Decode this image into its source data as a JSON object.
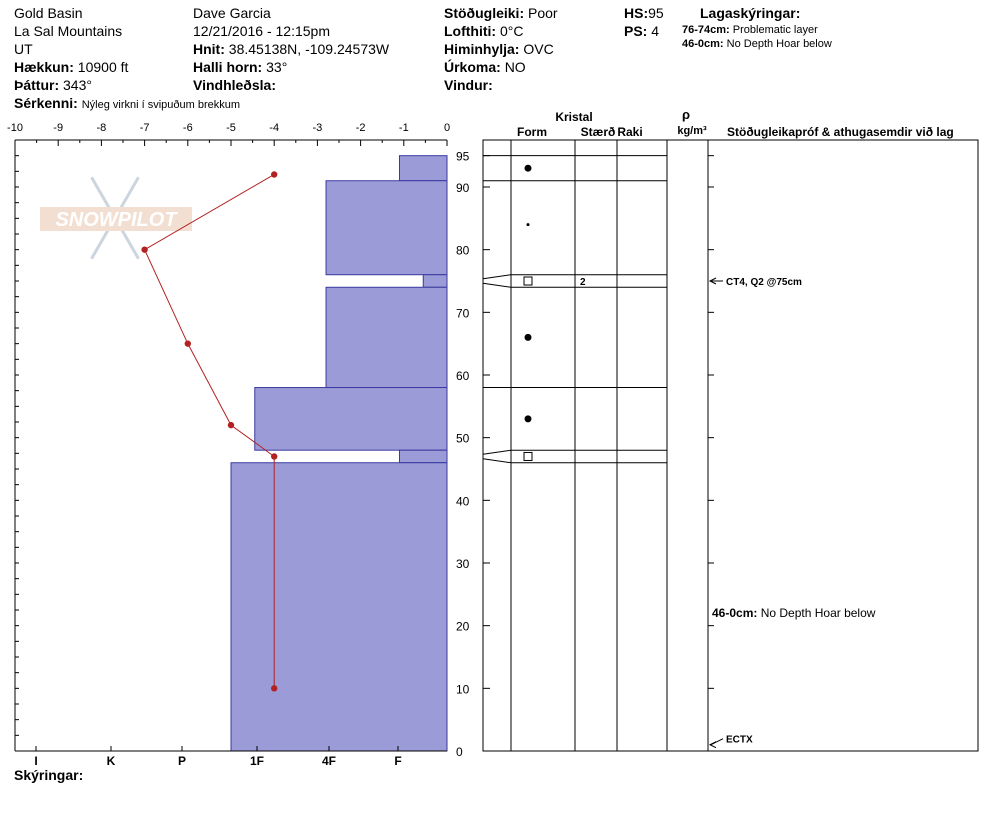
{
  "header": {
    "location": "Gold Basin",
    "range": "La Sal Mountains",
    "state": "UT",
    "elevation_label": "Hækkun:",
    "elevation_value": "10900 ft",
    "aspect_label": "Þáttur:",
    "aspect_value": "343°",
    "specifics_label": "Sérkenni:",
    "specifics_value": "Nýleg virkni í svipuðum brekkum",
    "observer": "Dave Garcia",
    "datetime": "12/21/2016 - 12:15pm",
    "coords_label": "Hnit:",
    "coords_value": "38.45138N, -109.24573W",
    "slope_label": "Halli horn:",
    "slope_value": "33°",
    "wind_loading_label": "Vindhleðsla:",
    "wind_loading_value": "",
    "stability_label": "Stöðugleiki:",
    "stability_value": "Poor",
    "air_temp_label": "Lofthiti:",
    "air_temp_value": "0°C",
    "sky_label": "Himinhylja:",
    "sky_value": "OVC",
    "precip_label": "Úrkoma:",
    "precip_value": "NO",
    "wind_label": "Vindur:",
    "wind_value": "",
    "hs_label": "HS:",
    "hs_value": "95",
    "ps_label": "PS:",
    "ps_value": "4",
    "layer_notes_title": "Lagaskýringar:",
    "layer_notes": [
      {
        "range": "76-74cm:",
        "text": "Problematic layer"
      },
      {
        "range": "46-0cm:",
        "text": "No Depth Hoar below"
      }
    ]
  },
  "footer": {
    "notes_label": "Skýringar:"
  },
  "watermark": "SNOWPILOT",
  "colors": {
    "hardness_fill": "#9b9bd7",
    "hardness_stroke": "#3a3aa0",
    "temp_line": "#b22222"
  },
  "table_headers": {
    "crystal": "Kristal",
    "form": "Form",
    "size": "Stærð",
    "wetness": "Raki",
    "rho": "ρ",
    "density_unit": "kg/m³",
    "tests": "Stöðugleikapróf & athugasemdir við lag"
  },
  "chart_data": {
    "type": "snow-profile",
    "temperature_axis": {
      "ticks": [
        "-10",
        "-9",
        "-8",
        "-7",
        "-6",
        "-5",
        "-4",
        "-3",
        "-2",
        "-1",
        "0"
      ],
      "range": [
        -10,
        0
      ]
    },
    "hardness_axis": {
      "ticks": [
        "I",
        "K",
        "P",
        "1F",
        "4F",
        "F"
      ]
    },
    "depth_axis": {
      "ticks": [
        "0",
        "10",
        "20",
        "30",
        "40",
        "50",
        "60",
        "70",
        "80",
        "90",
        "95"
      ],
      "range": [
        0,
        95
      ]
    },
    "hardness_layers": [
      {
        "top": 95,
        "bottom": 91,
        "temp_units": -1.1
      },
      {
        "top": 91,
        "bottom": 76,
        "temp_units": -2.8
      },
      {
        "top": 76,
        "bottom": 74,
        "temp_units": -0.55
      },
      {
        "top": 74,
        "bottom": 58,
        "temp_units": -2.8
      },
      {
        "top": 58,
        "bottom": 48,
        "temp_units": -4.45
      },
      {
        "top": 48,
        "bottom": 46,
        "temp_units": -1.1
      },
      {
        "top": 46,
        "bottom": 0,
        "temp_units": -5.0
      }
    ],
    "temperature_profile": [
      {
        "depth": 92,
        "temp": -4
      },
      {
        "depth": 80,
        "temp": -7
      },
      {
        "depth": 65,
        "temp": -6
      },
      {
        "depth": 52,
        "temp": -5
      },
      {
        "depth": 47,
        "temp": -4
      },
      {
        "depth": 10,
        "temp": -4
      }
    ],
    "layer_boundaries": [
      95,
      91,
      76,
      74,
      58,
      48,
      46,
      0
    ],
    "crystals": [
      {
        "depth": 93,
        "symbol": "large-dot"
      },
      {
        "depth": 84,
        "symbol": "small-dot"
      },
      {
        "depth": 75,
        "symbol": "square",
        "size": "2"
      },
      {
        "depth": 66,
        "symbol": "large-dot"
      },
      {
        "depth": 53,
        "symbol": "large-dot"
      },
      {
        "depth": 47,
        "symbol": "square"
      }
    ],
    "test_comments": [
      {
        "depth": 75,
        "text": "CT4, Q2 @75cm",
        "arrow": true
      },
      {
        "depth": 22,
        "label": "46-0cm:",
        "text": "No Depth Hoar below",
        "arrow": false
      },
      {
        "depth": 1,
        "text": "ECTX",
        "arrow": true
      }
    ]
  }
}
